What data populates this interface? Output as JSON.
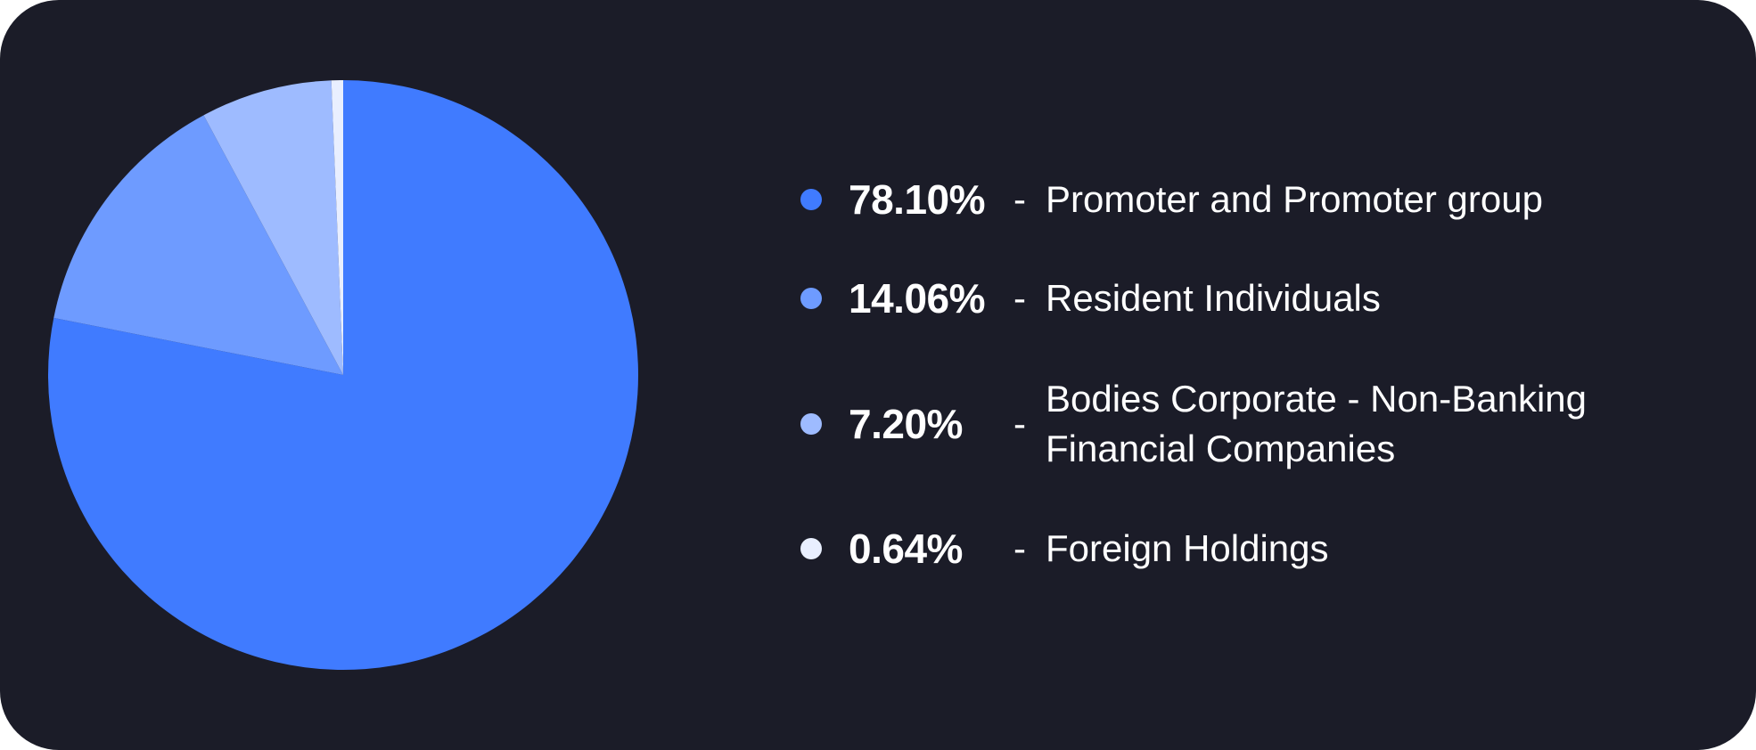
{
  "colors": {
    "background": "#1b1c28",
    "text": "#ffffff"
  },
  "chart_data": {
    "type": "pie",
    "start_angle_deg": 0,
    "direction": "clockwise",
    "slices": [
      {
        "label": "Promoter and Promoter group",
        "label_lines": [
          "Promoter and Promoter group"
        ],
        "value": 78.1,
        "display": "78.10%",
        "color": "#407bff"
      },
      {
        "label": "Resident Individuals",
        "label_lines": [
          "Resident Individuals"
        ],
        "value": 14.06,
        "display": "14.06%",
        "color": "#6e9bff"
      },
      {
        "label": "Bodies Corporate - Non-Banking Financial Companies",
        "label_lines": [
          "Bodies Corporate - Non-Banking",
          "Financial Companies"
        ],
        "value": 7.2,
        "display": "7.20%",
        "color": "#9ebbff"
      },
      {
        "label": "Foreign Holdings",
        "label_lines": [
          "Foreign Holdings"
        ],
        "value": 0.64,
        "display": "0.64%",
        "color": "#e9efff"
      }
    ],
    "legend": {
      "placement": "right",
      "separator": "-"
    }
  }
}
